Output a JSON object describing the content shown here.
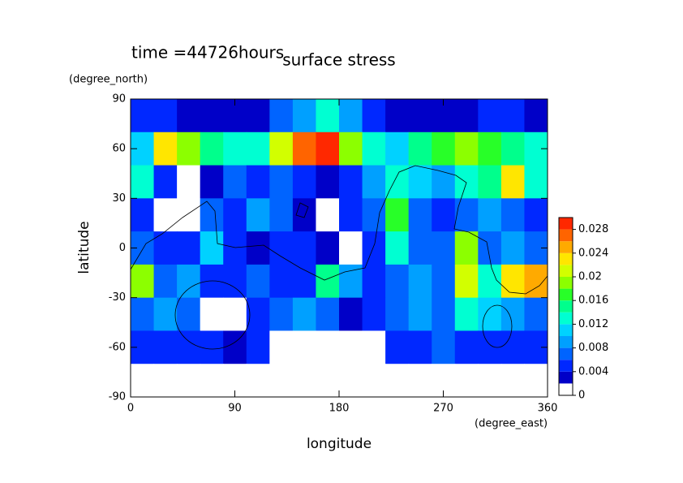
{
  "chart_data": {
    "type": "contour",
    "title": "surface stress",
    "subtitle": "time =44726hours",
    "x_label": "longitude",
    "x_units": "(degree_east)",
    "y_label": "latitude",
    "y_units": "(degree_north)",
    "xlim": [
      0,
      360
    ],
    "xticks": [
      0,
      90,
      180,
      270,
      360
    ],
    "ylim": [
      -90,
      90
    ],
    "yticks": [
      -90,
      -60,
      -30,
      0,
      30,
      60,
      90
    ],
    "x": [
      10,
      30,
      50,
      70,
      90,
      110,
      130,
      150,
      170,
      190,
      210,
      230,
      250,
      270,
      290,
      310,
      330,
      350
    ],
    "y": [
      80,
      60,
      40,
      20,
      0,
      -20,
      -40,
      -60,
      -80
    ],
    "z": [
      [
        0.004,
        0.004,
        0.003,
        0.002,
        0.003,
        0.003,
        0.006,
        0.008,
        0.012,
        0.008,
        0.004,
        0.003,
        0.003,
        0.003,
        0.003,
        0.004,
        0.004,
        0.003
      ],
      [
        0.01,
        0.022,
        0.018,
        0.014,
        0.012,
        0.012,
        0.02,
        0.026,
        0.028,
        0.018,
        0.012,
        0.01,
        0.014,
        0.016,
        0.018,
        0.016,
        0.014,
        0.012
      ],
      [
        0.012,
        0.004,
        0.001,
        0.002,
        0.006,
        0.004,
        0.006,
        0.004,
        0.002,
        0.004,
        0.008,
        0.012,
        0.01,
        0.008,
        0.012,
        0.014,
        0.022,
        0.012
      ],
      [
        0.004,
        0.001,
        0.001,
        0.006,
        0.004,
        0.008,
        0.006,
        0.002,
        0.001,
        0.004,
        0.006,
        0.016,
        0.006,
        0.004,
        0.006,
        0.008,
        0.006,
        0.004
      ],
      [
        0.006,
        0.004,
        0.004,
        0.01,
        0.004,
        0.002,
        0.004,
        0.004,
        0.002,
        0.001,
        0.004,
        0.012,
        0.006,
        0.006,
        0.018,
        0.006,
        0.008,
        0.006
      ],
      [
        0.018,
        0.006,
        0.008,
        0.004,
        0.004,
        0.006,
        0.004,
        0.004,
        0.014,
        0.008,
        0.004,
        0.006,
        0.008,
        0.006,
        0.02,
        0.012,
        0.022,
        0.024
      ],
      [
        0.006,
        0.008,
        0.006,
        0.001,
        0.001,
        0.004,
        0.006,
        0.008,
        0.006,
        0.002,
        0.004,
        0.006,
        0.008,
        0.006,
        0.012,
        0.01,
        0.008,
        0.006
      ],
      [
        0.004,
        0.004,
        0.004,
        0.004,
        0.002,
        0.004,
        0.001,
        0.001,
        0.001,
        0.001,
        0.001,
        0.004,
        0.004,
        0.006,
        0.004,
        0.004,
        0.004,
        0.004
      ],
      [
        0.001,
        0,
        0,
        0,
        0,
        0,
        0,
        0,
        0,
        0,
        0,
        0,
        0,
        0.001,
        0,
        0,
        0,
        0
      ]
    ],
    "levels": [
      0,
      0.002,
      0.004,
      0.006,
      0.008,
      0.01,
      0.012,
      0.014,
      0.016,
      0.018,
      0.02,
      0.022,
      0.024,
      0.026,
      0.028,
      0.03
    ],
    "colors": [
      "#ffffff",
      "#0000c8",
      "#0028ff",
      "#0064ff",
      "#00a0ff",
      "#00d2ff",
      "#00ffd2",
      "#00ff8c",
      "#28ff28",
      "#8cff00",
      "#d2ff00",
      "#ffe600",
      "#ffaa00",
      "#ff6400",
      "#ff2800"
    ],
    "colorbar_ticks": [
      0,
      0.004,
      0.008,
      0.012,
      0.016,
      0.02,
      0.024,
      0.028
    ]
  }
}
